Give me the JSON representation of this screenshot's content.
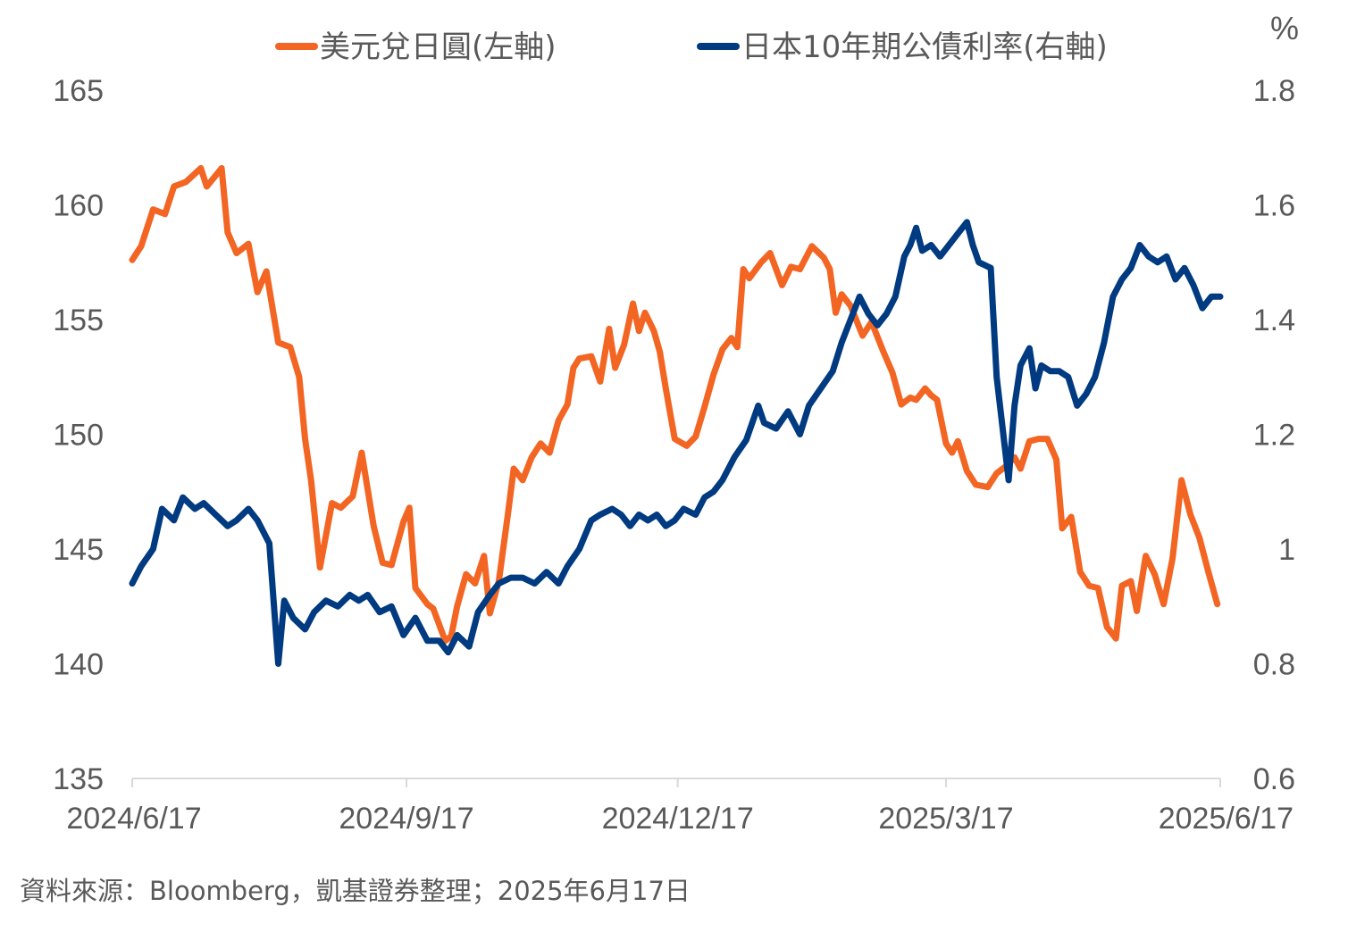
{
  "chart_data": {
    "type": "line",
    "legend_position": "top",
    "grid": false,
    "right_axis_unit": "%",
    "x_ticks": [
      "2024/6/17",
      "2024/9/17",
      "2024/12/17",
      "2025/3/17",
      "2025/6/17"
    ],
    "y_left": {
      "min": 135,
      "max": 165,
      "ticks": [
        "135",
        "140",
        "145",
        "150",
        "155",
        "160",
        "165"
      ]
    },
    "y_right": {
      "min": 0.6,
      "max": 1.8,
      "ticks": [
        "0.6",
        "0.8",
        "1",
        "1.2",
        "1.4",
        "1.6",
        "1.8"
      ]
    },
    "series": [
      {
        "name": "美元兌日圓(左軸)",
        "axis": "left",
        "color": "#F26522",
        "points": [
          [
            "2024-06-17",
            157.6
          ],
          [
            "2024-06-20",
            158.2
          ],
          [
            "2024-06-24",
            159.8
          ],
          [
            "2024-06-28",
            159.6
          ],
          [
            "2024-07-01",
            160.8
          ],
          [
            "2024-07-05",
            161.0
          ],
          [
            "2024-07-10",
            161.6
          ],
          [
            "2024-07-12",
            160.8
          ],
          [
            "2024-07-17",
            161.6
          ],
          [
            "2024-07-19",
            158.8
          ],
          [
            "2024-07-22",
            157.9
          ],
          [
            "2024-07-26",
            158.3
          ],
          [
            "2024-07-29",
            156.2
          ],
          [
            "2024-08-01",
            157.1
          ],
          [
            "2024-08-05",
            154.0
          ],
          [
            "2024-08-09",
            153.8
          ],
          [
            "2024-08-12",
            152.5
          ],
          [
            "2024-08-14",
            149.8
          ],
          [
            "2024-08-16",
            148.0
          ],
          [
            "2024-08-19",
            144.2
          ],
          [
            "2024-08-23",
            147.0
          ],
          [
            "2024-08-26",
            146.8
          ],
          [
            "2024-08-30",
            147.3
          ],
          [
            "2024-09-02",
            149.2
          ],
          [
            "2024-09-06",
            146.0
          ],
          [
            "2024-09-09",
            144.4
          ],
          [
            "2024-09-12",
            144.3
          ],
          [
            "2024-09-16",
            146.2
          ],
          [
            "2024-09-18",
            146.8
          ],
          [
            "2024-09-20",
            143.3
          ],
          [
            "2024-09-24",
            142.6
          ],
          [
            "2024-09-26",
            142.4
          ],
          [
            "2024-09-30",
            141.0
          ],
          [
            "2024-10-02",
            141.2
          ],
          [
            "2024-10-04",
            142.5
          ],
          [
            "2024-10-07",
            143.9
          ],
          [
            "2024-10-10",
            143.5
          ],
          [
            "2024-10-13",
            144.7
          ],
          [
            "2024-10-15",
            142.2
          ],
          [
            "2024-10-18",
            143.6
          ],
          [
            "2024-10-21",
            146.5
          ],
          [
            "2024-10-23",
            148.5
          ],
          [
            "2024-10-26",
            148.0
          ],
          [
            "2024-10-29",
            149.0
          ],
          [
            "2024-11-01",
            149.6
          ],
          [
            "2024-11-04",
            149.2
          ],
          [
            "2024-11-07",
            150.6
          ],
          [
            "2024-11-10",
            151.3
          ],
          [
            "2024-11-12",
            152.9
          ],
          [
            "2024-11-14",
            153.3
          ],
          [
            "2024-11-18",
            153.4
          ],
          [
            "2024-11-21",
            152.3
          ],
          [
            "2024-11-24",
            154.6
          ],
          [
            "2024-11-26",
            152.9
          ],
          [
            "2024-11-29",
            153.9
          ],
          [
            "2024-12-02",
            155.7
          ],
          [
            "2024-12-04",
            154.5
          ],
          [
            "2024-12-06",
            155.3
          ],
          [
            "2024-12-09",
            154.5
          ],
          [
            "2024-12-11",
            153.6
          ],
          [
            "2024-12-13",
            152.0
          ],
          [
            "2024-12-16",
            149.8
          ],
          [
            "2024-12-20",
            149.5
          ],
          [
            "2024-12-23",
            149.9
          ],
          [
            "2024-12-26",
            151.2
          ],
          [
            "2024-12-29",
            152.6
          ],
          [
            "2025-01-01",
            153.7
          ],
          [
            "2025-01-04",
            154.2
          ],
          [
            "2025-01-06",
            153.8
          ],
          [
            "2025-01-08",
            157.2
          ],
          [
            "2025-01-10",
            156.8
          ],
          [
            "2025-01-14",
            157.5
          ],
          [
            "2025-01-17",
            157.9
          ],
          [
            "2025-01-21",
            156.5
          ],
          [
            "2025-01-24",
            157.3
          ],
          [
            "2025-01-27",
            157.2
          ],
          [
            "2025-01-31",
            158.2
          ],
          [
            "2025-02-04",
            157.7
          ],
          [
            "2025-02-06",
            157.2
          ],
          [
            "2025-02-08",
            155.3
          ],
          [
            "2025-02-10",
            156.1
          ],
          [
            "2025-02-13",
            155.6
          ],
          [
            "2025-02-17",
            154.3
          ],
          [
            "2025-02-20",
            154.9
          ],
          [
            "2025-02-24",
            153.6
          ],
          [
            "2025-02-27",
            152.7
          ],
          [
            "2025-03-02",
            151.3
          ],
          [
            "2025-03-05",
            151.6
          ],
          [
            "2025-03-07",
            151.5
          ],
          [
            "2025-03-10",
            152.0
          ],
          [
            "2025-03-12",
            151.7
          ],
          [
            "2025-03-14",
            151.5
          ],
          [
            "2025-03-17",
            149.6
          ],
          [
            "2025-03-19",
            149.2
          ],
          [
            "2025-03-21",
            149.7
          ],
          [
            "2025-03-24",
            148.4
          ],
          [
            "2025-03-27",
            147.8
          ],
          [
            "2025-03-31",
            147.7
          ],
          [
            "2025-04-03",
            148.3
          ],
          [
            "2025-04-06",
            148.6
          ],
          [
            "2025-04-09",
            149.0
          ],
          [
            "2025-04-11",
            148.5
          ],
          [
            "2025-04-14",
            149.7
          ],
          [
            "2025-04-17",
            149.8
          ],
          [
            "2025-04-20",
            149.8
          ],
          [
            "2025-04-23",
            148.9
          ],
          [
            "2025-04-25",
            145.9
          ],
          [
            "2025-04-28",
            146.4
          ],
          [
            "2025-05-01",
            144.0
          ],
          [
            "2025-05-04",
            143.4
          ],
          [
            "2025-05-07",
            143.3
          ],
          [
            "2025-05-10",
            141.6
          ],
          [
            "2025-05-13",
            141.1
          ],
          [
            "2025-05-15",
            143.4
          ],
          [
            "2025-05-18",
            143.6
          ],
          [
            "2025-05-20",
            142.3
          ],
          [
            "2025-05-23",
            144.7
          ],
          [
            "2025-05-26",
            143.9
          ],
          [
            "2025-05-29",
            142.6
          ],
          [
            "2025-06-01",
            144.6
          ],
          [
            "2025-06-04",
            148.0
          ],
          [
            "2025-06-07",
            146.5
          ],
          [
            "2025-06-10",
            145.5
          ],
          [
            "2025-06-13",
            144.0
          ],
          [
            "2025-06-16",
            142.6
          ]
        ]
      },
      {
        "name": "日本10年期公債利率(右軸)",
        "axis": "right",
        "color": "#003A80",
        "points": [
          [
            "2024-06-17",
            0.94
          ],
          [
            "2024-06-20",
            0.97
          ],
          [
            "2024-06-24",
            1.0
          ],
          [
            "2024-06-27",
            1.07
          ],
          [
            "2024-07-01",
            1.05
          ],
          [
            "2024-07-04",
            1.09
          ],
          [
            "2024-07-08",
            1.07
          ],
          [
            "2024-07-11",
            1.08
          ],
          [
            "2024-07-15",
            1.06
          ],
          [
            "2024-07-19",
            1.04
          ],
          [
            "2024-07-22",
            1.05
          ],
          [
            "2024-07-26",
            1.07
          ],
          [
            "2024-07-29",
            1.05
          ],
          [
            "2024-08-02",
            1.01
          ],
          [
            "2024-08-05",
            0.8
          ],
          [
            "2024-08-07",
            0.91
          ],
          [
            "2024-08-10",
            0.88
          ],
          [
            "2024-08-14",
            0.86
          ],
          [
            "2024-08-17",
            0.89
          ],
          [
            "2024-08-21",
            0.91
          ],
          [
            "2024-08-25",
            0.9
          ],
          [
            "2024-08-29",
            0.92
          ],
          [
            "2024-09-01",
            0.91
          ],
          [
            "2024-09-04",
            0.92
          ],
          [
            "2024-09-08",
            0.89
          ],
          [
            "2024-09-12",
            0.9
          ],
          [
            "2024-09-16",
            0.85
          ],
          [
            "2024-09-20",
            0.88
          ],
          [
            "2024-09-24",
            0.84
          ],
          [
            "2024-09-28",
            0.84
          ],
          [
            "2024-10-01",
            0.82
          ],
          [
            "2024-10-04",
            0.85
          ],
          [
            "2024-10-08",
            0.83
          ],
          [
            "2024-10-11",
            0.89
          ],
          [
            "2024-10-15",
            0.92
          ],
          [
            "2024-10-18",
            0.94
          ],
          [
            "2024-10-22",
            0.95
          ],
          [
            "2024-10-26",
            0.95
          ],
          [
            "2024-10-30",
            0.94
          ],
          [
            "2024-11-03",
            0.96
          ],
          [
            "2024-11-07",
            0.94
          ],
          [
            "2024-11-10",
            0.97
          ],
          [
            "2024-11-14",
            1.0
          ],
          [
            "2024-11-18",
            1.05
          ],
          [
            "2024-11-21",
            1.06
          ],
          [
            "2024-11-25",
            1.07
          ],
          [
            "2024-11-28",
            1.06
          ],
          [
            "2024-12-01",
            1.04
          ],
          [
            "2024-12-04",
            1.06
          ],
          [
            "2024-12-07",
            1.05
          ],
          [
            "2024-12-10",
            1.06
          ],
          [
            "2024-12-13",
            1.04
          ],
          [
            "2024-12-16",
            1.05
          ],
          [
            "2024-12-19",
            1.07
          ],
          [
            "2024-12-23",
            1.06
          ],
          [
            "2024-12-26",
            1.09
          ],
          [
            "2024-12-29",
            1.1
          ],
          [
            "2025-01-01",
            1.12
          ],
          [
            "2025-01-05",
            1.16
          ],
          [
            "2025-01-09",
            1.19
          ],
          [
            "2025-01-13",
            1.25
          ],
          [
            "2025-01-15",
            1.22
          ],
          [
            "2025-01-19",
            1.21
          ],
          [
            "2025-01-23",
            1.24
          ],
          [
            "2025-01-27",
            1.2
          ],
          [
            "2025-01-30",
            1.25
          ],
          [
            "2025-02-03",
            1.28
          ],
          [
            "2025-02-07",
            1.31
          ],
          [
            "2025-02-10",
            1.36
          ],
          [
            "2025-02-13",
            1.4
          ],
          [
            "2025-02-16",
            1.44
          ],
          [
            "2025-02-19",
            1.41
          ],
          [
            "2025-02-22",
            1.39
          ],
          [
            "2025-02-25",
            1.41
          ],
          [
            "2025-02-28",
            1.44
          ],
          [
            "2025-03-03",
            1.51
          ],
          [
            "2025-03-05",
            1.53
          ],
          [
            "2025-03-07",
            1.56
          ],
          [
            "2025-03-09",
            1.52
          ],
          [
            "2025-03-12",
            1.53
          ],
          [
            "2025-03-15",
            1.51
          ],
          [
            "2025-03-18",
            1.53
          ],
          [
            "2025-03-21",
            1.55
          ],
          [
            "2025-03-24",
            1.57
          ],
          [
            "2025-03-26",
            1.53
          ],
          [
            "2025-03-28",
            1.5
          ],
          [
            "2025-04-01",
            1.49
          ],
          [
            "2025-04-03",
            1.3
          ],
          [
            "2025-04-07",
            1.12
          ],
          [
            "2025-04-09",
            1.25
          ],
          [
            "2025-04-11",
            1.32
          ],
          [
            "2025-04-14",
            1.35
          ],
          [
            "2025-04-16",
            1.28
          ],
          [
            "2025-04-18",
            1.32
          ],
          [
            "2025-04-21",
            1.31
          ],
          [
            "2025-04-24",
            1.31
          ],
          [
            "2025-04-27",
            1.3
          ],
          [
            "2025-04-30",
            1.25
          ],
          [
            "2025-05-03",
            1.27
          ],
          [
            "2025-05-06",
            1.3
          ],
          [
            "2025-05-09",
            1.36
          ],
          [
            "2025-05-12",
            1.44
          ],
          [
            "2025-05-15",
            1.47
          ],
          [
            "2025-05-18",
            1.49
          ],
          [
            "2025-05-21",
            1.53
          ],
          [
            "2025-05-24",
            1.51
          ],
          [
            "2025-05-27",
            1.5
          ],
          [
            "2025-05-30",
            1.51
          ],
          [
            "2025-06-02",
            1.47
          ],
          [
            "2025-06-05",
            1.49
          ],
          [
            "2025-06-08",
            1.46
          ],
          [
            "2025-06-11",
            1.42
          ],
          [
            "2025-06-14",
            1.44
          ],
          [
            "2025-06-17",
            1.44
          ]
        ]
      }
    ]
  },
  "source_note": "資料來源：Bloomberg，凱基證券整理；2025年6月17日"
}
